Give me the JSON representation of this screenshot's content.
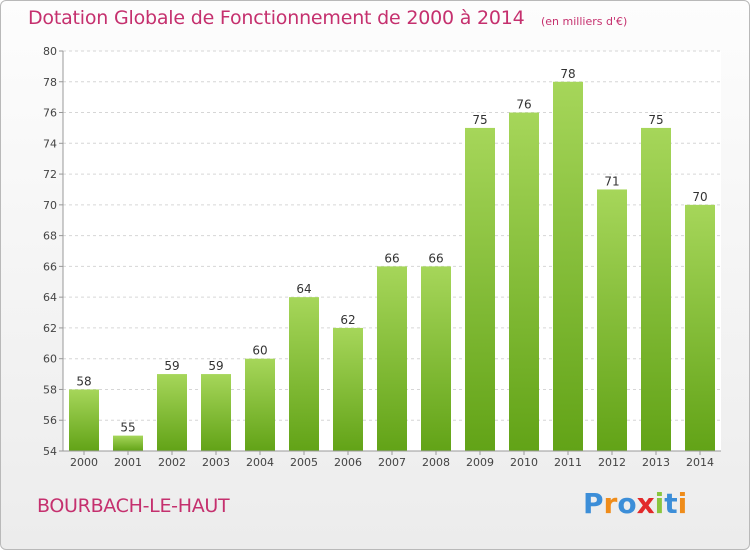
{
  "header": {
    "title": "Dotation Globale de Fonctionnement de 2000 à 2014",
    "unit": "(en milliers d'€)"
  },
  "footer": {
    "commune": "BOURBACH-LE-HAUT",
    "logo": [
      "P",
      "r",
      "o",
      "x",
      "i",
      "t",
      "i"
    ],
    "logo_colors": [
      "#3c8ed8",
      "#ef8c1a",
      "#3c8ed8",
      "#e2292a",
      "#8ac53e",
      "#3c8ed8",
      "#ef8c1a"
    ]
  },
  "colors": {
    "bar_light": "#a6d65a",
    "bar_dark": "#62a317",
    "accent": "#c5306e"
  },
  "chart_data": {
    "type": "bar",
    "categories": [
      "2000",
      "2001",
      "2002",
      "2003",
      "2004",
      "2005",
      "2006",
      "2007",
      "2008",
      "2009",
      "2010",
      "2011",
      "2012",
      "2013",
      "2014"
    ],
    "values": [
      58,
      55,
      59,
      59,
      60,
      64,
      62,
      66,
      66,
      75,
      76,
      78,
      71,
      75,
      70
    ],
    "ylim": [
      54,
      80
    ],
    "yticks": [
      54,
      56,
      58,
      60,
      62,
      64,
      66,
      68,
      70,
      72,
      74,
      76,
      78,
      80
    ],
    "grid": true,
    "legend": "none"
  }
}
